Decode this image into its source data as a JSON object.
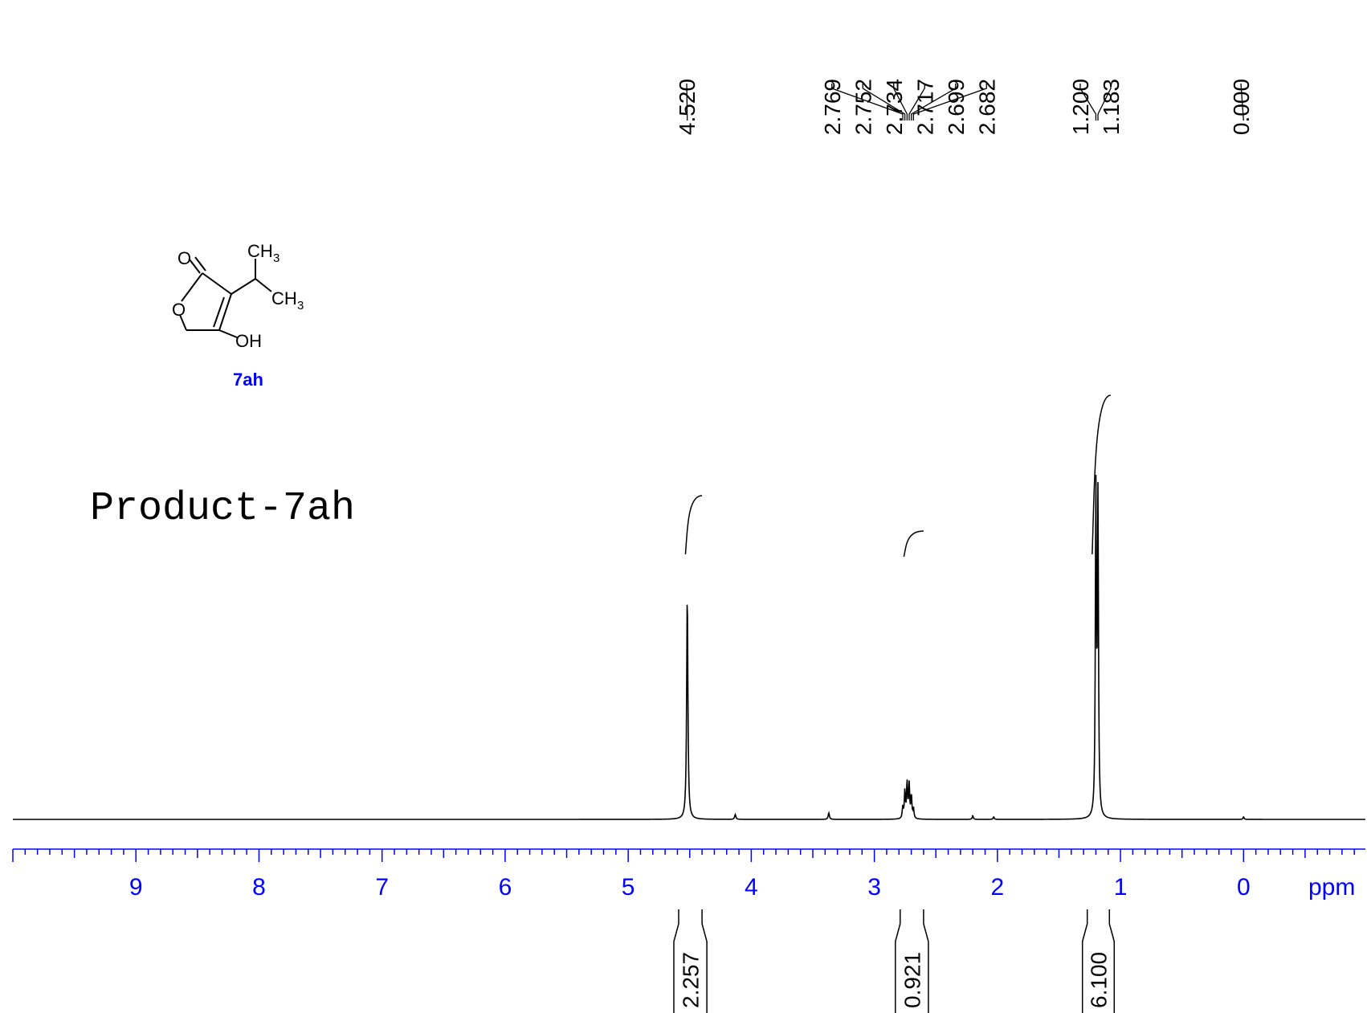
{
  "chart_data": {
    "type": "line",
    "title": "",
    "sample_label": "Product-7ah",
    "compound_id": "7ah",
    "xlabel": "ppm",
    "x_reversed": true,
    "xlim": [
      -0.99,
      10.0
    ],
    "ylim": [
      0,
      1
    ],
    "grid": false,
    "x_ticks": [
      "9",
      "8",
      "7",
      "6",
      "5",
      "4",
      "3",
      "2",
      "1",
      "0"
    ],
    "peak_labels": [
      "4.520",
      "2.769",
      "2.752",
      "2.734",
      "2.717",
      "2.699",
      "2.682",
      "1.200",
      "1.183",
      "0.000"
    ],
    "peaks": [
      {
        "ppm": 4.52,
        "height": 0.7,
        "width": 0.006
      },
      {
        "ppm": 2.769,
        "height": 0.035,
        "width": 0.005
      },
      {
        "ppm": 2.752,
        "height": 0.085,
        "width": 0.005
      },
      {
        "ppm": 2.734,
        "height": 0.11,
        "width": 0.005
      },
      {
        "ppm": 2.717,
        "height": 0.105,
        "width": 0.005
      },
      {
        "ppm": 2.699,
        "height": 0.07,
        "width": 0.005
      },
      {
        "ppm": 2.682,
        "height": 0.03,
        "width": 0.005
      },
      {
        "ppm": 1.2,
        "height": 1.0,
        "width": 0.005
      },
      {
        "ppm": 1.183,
        "height": 0.97,
        "width": 0.005
      },
      {
        "ppm": 4.13,
        "height": 0.015,
        "width": 0.006
      },
      {
        "ppm": 3.37,
        "height": 0.02,
        "width": 0.006
      },
      {
        "ppm": 2.2,
        "height": 0.012,
        "width": 0.005
      },
      {
        "ppm": 2.03,
        "height": 0.008,
        "width": 0.005
      },
      {
        "ppm": 0.0,
        "height": 0.008,
        "width": 0.005
      }
    ],
    "integrals": [
      {
        "label": "2.257",
        "from": 4.59,
        "to": 4.4,
        "value": 2.257
      },
      {
        "label": "0.921",
        "from": 2.79,
        "to": 2.6,
        "value": 0.921
      },
      {
        "label": "6.100",
        "from": 1.27,
        "to": 1.09,
        "value": 6.1
      }
    ]
  },
  "structure": {
    "atoms": {
      "carbonyl_o": "O",
      "ring_o": "O",
      "ch3_top": "CH",
      "ch3_top_sub": "3",
      "ch3_right": "CH",
      "ch3_right_sub": "3",
      "oh": "OH"
    }
  }
}
